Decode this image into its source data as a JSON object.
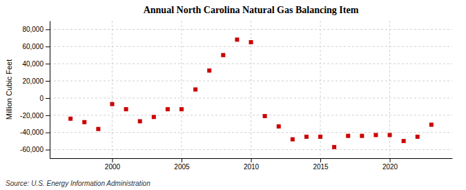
{
  "chart_data": {
    "type": "scatter",
    "title": "Annual North Carolina Natural Gas Balancing Item",
    "ylabel": "Million Cubic Feet",
    "annotation": "Source: U.S. Energy Information Administration",
    "x": [
      1997,
      1998,
      1999,
      2000,
      2001,
      2002,
      2003,
      2004,
      2005,
      2006,
      2007,
      2008,
      2009,
      2010,
      2011,
      2012,
      2013,
      2014,
      2015,
      2016,
      2017,
      2018,
      2019,
      2020,
      2021,
      2022,
      2023
    ],
    "values": [
      -24000,
      -28000,
      -36000,
      -7000,
      -13000,
      -27000,
      -22000,
      -13000,
      -13000,
      10000,
      32000,
      50000,
      68000,
      65000,
      -21000,
      -33000,
      -48000,
      -45000,
      -45000,
      -57000,
      -44000,
      -44000,
      -43000,
      -43000,
      -50000,
      -45000,
      -31000
    ],
    "color": "#cc0000",
    "marker": "square",
    "xlim": [
      1995.5,
      2024.5
    ],
    "xticks": [
      2000,
      2005,
      2010,
      2015,
      2020
    ],
    "ylim": [
      -70000,
      90000
    ],
    "yticks": [
      {
        "value": -60000,
        "label": "-60,000"
      },
      {
        "value": -40000,
        "label": "-40,000"
      },
      {
        "value": -20000,
        "label": "-20,000"
      },
      0,
      {
        "value": 20000,
        "label": "20,000"
      },
      {
        "value": 40000,
        "label": "40,000"
      },
      {
        "value": 60000,
        "label": "60,000"
      },
      {
        "value": 80000,
        "label": "80,000"
      }
    ],
    "grid": true
  }
}
